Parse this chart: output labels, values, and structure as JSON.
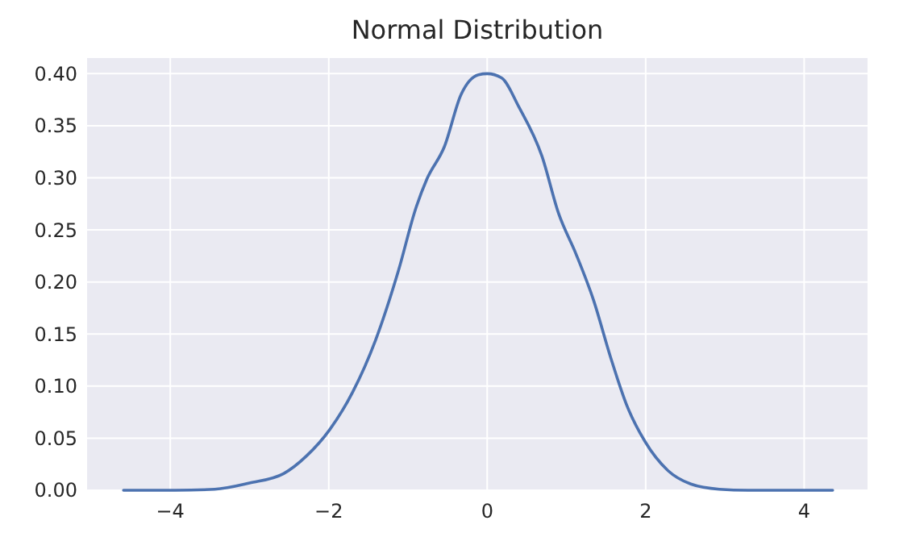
{
  "chart_data": {
    "type": "line",
    "title": "Normal Distribution",
    "x": [
      -4.59,
      -3.94,
      -3.44,
      -3.0,
      -2.57,
      -2.28,
      -1.99,
      -1.7,
      -1.41,
      -1.12,
      -0.9,
      -0.76,
      -0.54,
      -0.33,
      -0.11,
      0,
      0.18,
      0.4,
      0.69,
      0.9,
      1.12,
      1.34,
      1.56,
      1.77,
      1.99,
      2.28,
      2.57,
      2.93,
      3.29,
      4.36
    ],
    "series": [
      {
        "color": "#4c72b0",
        "values": [
          0,
          0,
          0.001,
          0.007,
          0.016,
          0.033,
          0.058,
          0.094,
          0.144,
          0.211,
          0.271,
          0.299,
          0.33,
          0.38,
          0.399,
          0.4,
          0.396,
          0.368,
          0.321,
          0.266,
          0.227,
          0.183,
          0.127,
          0.08,
          0.047,
          0.019,
          0.006,
          0.001,
          0,
          0
        ]
      }
    ],
    "xlim": [
      -5.05,
      4.8
    ],
    "xticks": [
      {
        "value": -4,
        "label": "−4"
      },
      {
        "value": -2,
        "label": "−2"
      },
      0,
      2,
      4
    ],
    "ylim": [
      0,
      0.415
    ],
    "yticks": [
      {
        "value": 0,
        "label": "0.00"
      },
      {
        "value": 0.05,
        "label": "0.05"
      },
      {
        "value": 0.1,
        "label": "0.10"
      },
      {
        "value": 0.15,
        "label": "0.15"
      },
      {
        "value": 0.2,
        "label": "0.20"
      },
      {
        "value": 0.25,
        "label": "0.25"
      },
      {
        "value": 0.3,
        "label": "0.30"
      },
      {
        "value": 0.35,
        "label": "0.35"
      },
      {
        "value": 0.4,
        "label": "0.40"
      }
    ],
    "grid": true,
    "marker": "none",
    "line_style": "solid"
  }
}
